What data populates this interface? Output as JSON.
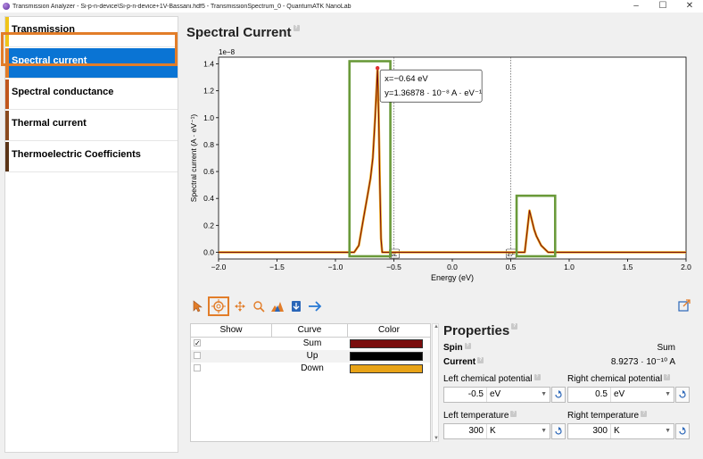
{
  "window": {
    "title": "Transmission Analyzer - Si-p-n-device\\Si-p-n-device+1V-Bassani.hdf5 - TransmissionSpectrum_0 - QuantumATK NanoLab",
    "minimize": "–",
    "maximize": "☐",
    "close": "✕"
  },
  "sidebar": {
    "items": [
      {
        "label": "Transmission",
        "stripe": "#f0c419"
      },
      {
        "label": "Spectral current",
        "stripe": "#e27d29"
      },
      {
        "label": "Spectral conductance",
        "stripe": "#c0561d"
      },
      {
        "label": "Thermal current",
        "stripe": "#8a4a1f"
      },
      {
        "label": "Thermoelectric Coefficients",
        "stripe": "#5a3417"
      }
    ],
    "selected_index": 1
  },
  "main": {
    "title": "Spectral Current"
  },
  "chart_data": {
    "type": "line",
    "ylabel": "Spectral current (A · eV⁻¹)",
    "xlabel": "Energy (eV)",
    "y_exponent": "1e−8",
    "xlim": [
      -2.0,
      2.0
    ],
    "ylim": [
      -0.05,
      1.45
    ],
    "x_ticks": [
      "−2.0",
      "−1.5",
      "−1.0",
      "−0.5",
      "0.0",
      "0.5",
      "1.0",
      "1.5",
      "2.0"
    ],
    "y_ticks": [
      "0.0",
      "0.2",
      "0.4",
      "0.6",
      "0.8",
      "1.0",
      "1.2",
      "1.4"
    ],
    "series": [
      {
        "name": "Sum",
        "color": "#7a0d0d",
        "x": [
          -2.0,
          -0.84,
          -0.8,
          -0.76,
          -0.72,
          -0.7,
          -0.68,
          -0.66,
          -0.64,
          -0.63,
          -0.62,
          -0.61,
          -0.6,
          -0.56,
          0.62,
          0.64,
          0.66,
          0.68,
          0.7,
          0.72,
          0.76,
          0.82,
          2.0
        ],
        "y": [
          0.0,
          0.0,
          0.05,
          0.25,
          0.45,
          0.55,
          0.7,
          1.0,
          1.36878,
          1.0,
          0.5,
          0.1,
          0.0,
          0.0,
          0.0,
          0.15,
          0.31,
          0.24,
          0.17,
          0.12,
          0.05,
          0.0,
          0.0
        ]
      },
      {
        "name": "Down",
        "color": "#e8a317",
        "x": [
          -2.0,
          -0.84,
          -0.8,
          -0.76,
          -0.72,
          -0.7,
          -0.68,
          -0.66,
          -0.64,
          -0.63,
          -0.62,
          -0.61,
          -0.6,
          -0.56,
          0.62,
          0.64,
          0.66,
          0.68,
          0.7,
          0.72,
          0.76,
          0.82,
          2.0
        ],
        "y": [
          0.0,
          0.0,
          0.05,
          0.25,
          0.45,
          0.55,
          0.7,
          1.0,
          1.36878,
          1.0,
          0.5,
          0.1,
          0.0,
          0.0,
          0.0,
          0.15,
          0.31,
          0.24,
          0.17,
          0.12,
          0.05,
          0.0,
          0.0
        ]
      }
    ],
    "vlines": [
      {
        "x": -0.5,
        "label": "μL"
      },
      {
        "x": 0.5,
        "label": "EF"
      }
    ],
    "tooltip": {
      "x_text": "x=−0.64 eV",
      "y_text": "y=1.36878 · 10⁻⁸ A · eV⁻¹",
      "point_x": -0.64,
      "point_y": 1.36878
    },
    "highlight_boxes": [
      {
        "x0": -0.88,
        "x1": -0.53,
        "y0": -0.03,
        "y1": 1.42
      },
      {
        "x0": 0.55,
        "x1": 0.88,
        "y0": -0.03,
        "y1": 0.42
      }
    ]
  },
  "toolbar": {
    "tools": [
      "pointer-icon",
      "crosshair-icon",
      "pan-icon",
      "zoom-icon",
      "fit-icon",
      "export-icon",
      "arrow-icon"
    ],
    "active": "crosshair-icon"
  },
  "curves_table": {
    "headers": [
      "Show",
      "Curve",
      "Color"
    ],
    "rows": [
      {
        "checked": "✓",
        "curve": "Sum",
        "color": "#7a0d0d"
      },
      {
        "checked": "",
        "curve": "Up",
        "color": "#000000"
      },
      {
        "checked": "",
        "curve": "Down",
        "color": "#e8a317"
      }
    ]
  },
  "properties": {
    "title": "Properties",
    "spin_label": "Spin",
    "spin_value": "Sum",
    "current_label": "Current",
    "current_value": "8.9273 · 10⁻¹⁰ A",
    "left_mu_label": "Left chemical potential",
    "left_mu_value": "-0.5",
    "left_mu_unit": "eV",
    "right_mu_label": "Right chemical potential",
    "right_mu_value": "0.5",
    "right_mu_unit": "eV",
    "left_t_label": "Left temperature",
    "left_t_value": "300",
    "left_t_unit": "K",
    "right_t_label": "Right temperature",
    "right_t_value": "300",
    "right_t_unit": "K"
  }
}
